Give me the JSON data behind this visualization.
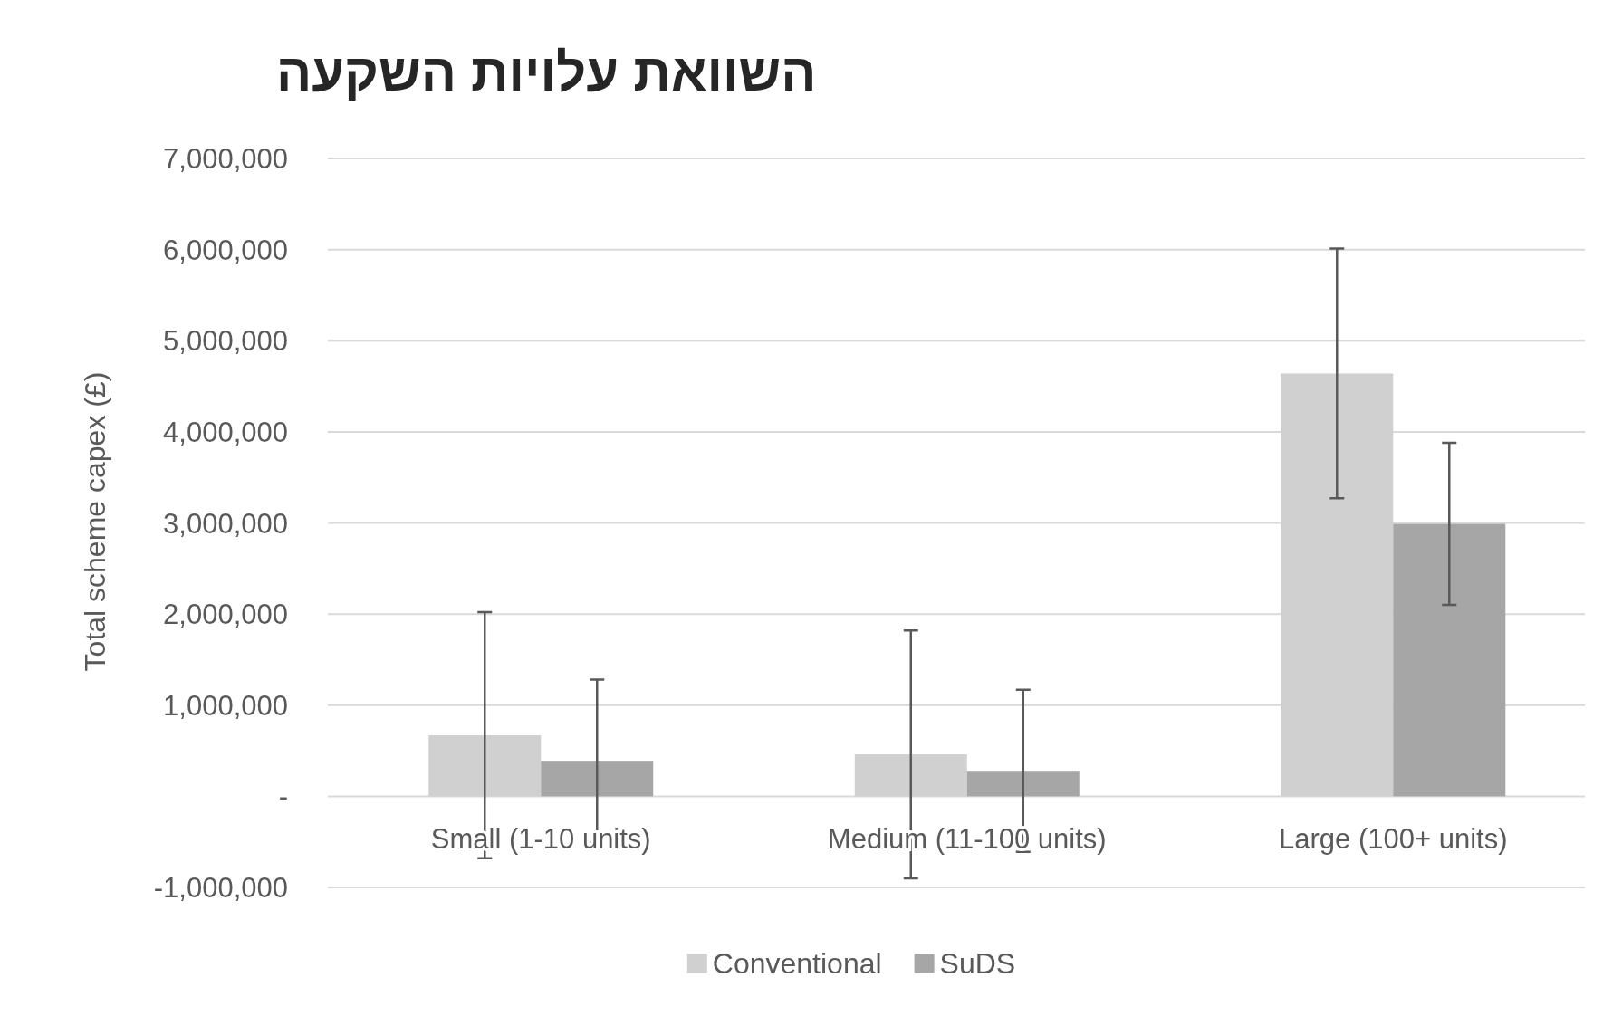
{
  "chart_data": {
    "type": "bar",
    "title": "השוואת עלויות השקעה",
    "ylabel": "Total scheme capex (£)",
    "categories": [
      "Small (1-10 units)",
      "Medium (11-100 units)",
      "Large (100+ units)"
    ],
    "series": [
      {
        "name": "Conventional",
        "color": "#d0d0d0",
        "values": [
          670000,
          460000,
          4640000
        ],
        "errors": [
          1350000,
          1360000,
          1370000
        ]
      },
      {
        "name": "SuDS",
        "color": "#a6a6a6",
        "values": [
          390000,
          280000,
          2990000
        ],
        "errors": [
          890000,
          890000,
          890000
        ]
      }
    ],
    "ylim": [
      -1000000,
      7000000
    ],
    "yticks": [
      {
        "value": -1000000,
        "label": "-1,000,000"
      },
      {
        "value": 0,
        "label": "-"
      },
      {
        "value": 1000000,
        "label": "1,000,000"
      },
      {
        "value": 2000000,
        "label": "2,000,000"
      },
      {
        "value": 3000000,
        "label": "3,000,000"
      },
      {
        "value": 4000000,
        "label": "4,000,000"
      },
      {
        "value": 5000000,
        "label": "5,000,000"
      },
      {
        "value": 6000000,
        "label": "6,000,000"
      },
      {
        "value": 7000000,
        "label": "7,000,000"
      }
    ],
    "grid": "y",
    "legend": "bottom"
  }
}
